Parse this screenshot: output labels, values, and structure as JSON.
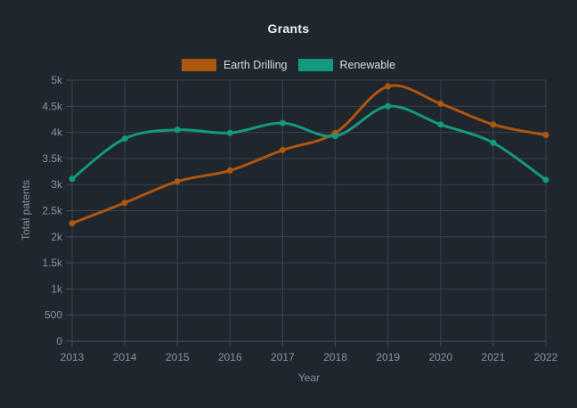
{
  "chart_data": {
    "type": "line",
    "title": "Grants",
    "xlabel": "Year",
    "ylabel": "Total patents",
    "categories": [
      "2013",
      "2014",
      "2015",
      "2016",
      "2017",
      "2018",
      "2019",
      "2020",
      "2021",
      "2022"
    ],
    "series": [
      {
        "name": "Earth Drilling",
        "color": "#ad570e",
        "values": [
          2260,
          2650,
          3060,
          3270,
          3660,
          3990,
          4880,
          4550,
          4150,
          3950
        ]
      },
      {
        "name": "Renewable",
        "color": "#129a7e",
        "values": [
          3110,
          3880,
          4050,
          3990,
          4180,
          3930,
          4500,
          4150,
          3800,
          3090
        ]
      }
    ],
    "ylim": [
      0,
      5000
    ],
    "ytick_step": 500,
    "ytick_labels": [
      "0",
      "500",
      "1k",
      "1.5k",
      "2k",
      "2.5k",
      "3k",
      "3.5k",
      "4k",
      "4.5k",
      "5k"
    ],
    "grid": true,
    "smooth": true,
    "marker": "circle",
    "legend_position": "top-center"
  },
  "theme": {
    "background": "#20262e",
    "grid_color": "#3a414b",
    "axis_line_color": "#454c55",
    "tick_text_color": "#8b929b",
    "axis_title_color": "#878e97",
    "title_color": "#eef1f4",
    "legend_text_color": "#d8dce0"
  }
}
